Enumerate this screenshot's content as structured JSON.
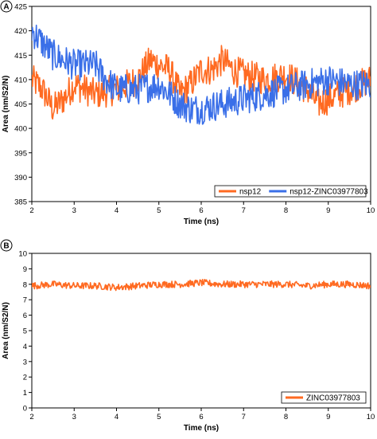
{
  "colors": {
    "nsp12": "#ff6a21",
    "complex": "#3a6fe8",
    "ligand": "#ff6a21"
  },
  "chart_data": [
    {
      "panel_label": "A",
      "type": "line",
      "xlabel": "Time (ns)",
      "ylabel": "Area (nm/S2/N)",
      "xlim": [
        2,
        10
      ],
      "ylim": [
        385,
        425
      ],
      "xticks": [
        "2",
        "3",
        "4",
        "5",
        "6",
        "7",
        "8",
        "9",
        "10"
      ],
      "yticks": [
        "385",
        "390",
        "395",
        "400",
        "405",
        "410",
        "415",
        "420",
        "425"
      ],
      "legend_position": "bottom-right",
      "series": [
        {
          "name": "nsp12",
          "color_key": "nsp12",
          "x": [
            2.0,
            2.25,
            2.5,
            2.75,
            3.0,
            3.5,
            4.0,
            4.5,
            4.8,
            5.0,
            5.25,
            5.5,
            5.75,
            6.0,
            6.25,
            6.5,
            6.75,
            7.0,
            7.5,
            8.0,
            8.5,
            8.75,
            9.0,
            9.5,
            10.0
          ],
          "values": [
            410,
            408,
            404,
            406,
            409,
            407,
            408,
            410,
            414,
            413,
            412,
            407,
            409,
            412,
            412,
            414,
            412,
            411,
            410,
            411,
            408,
            405,
            406,
            408,
            410
          ]
        },
        {
          "name": "nsp12-ZINC03977803",
          "color_key": "complex",
          "x": [
            2.0,
            2.2,
            2.5,
            2.75,
            3.0,
            3.25,
            3.5,
            3.75,
            4.0,
            4.5,
            5.0,
            5.5,
            5.75,
            6.0,
            6.5,
            7.0,
            7.5,
            8.0,
            8.5,
            9.0,
            9.5,
            10.0
          ],
          "values": [
            420,
            418,
            415,
            414,
            413,
            413,
            413,
            410,
            408,
            408,
            409,
            405,
            404,
            404,
            405,
            406,
            407,
            408,
            409,
            410,
            409,
            409
          ]
        }
      ]
    },
    {
      "panel_label": "B",
      "type": "line",
      "xlabel": "Time (ns)",
      "ylabel": "Area (nm/S2/N)",
      "xlim": [
        2,
        10
      ],
      "ylim": [
        0,
        10
      ],
      "xticks": [
        "2",
        "3",
        "4",
        "5",
        "6",
        "7",
        "8",
        "9",
        "10"
      ],
      "yticks": [
        "0",
        "1",
        "2",
        "3",
        "4",
        "5",
        "6",
        "7",
        "8",
        "9",
        "10"
      ],
      "legend_position": "bottom-right",
      "series": [
        {
          "name": "ZINC03977803",
          "color_key": "ligand",
          "x": [
            2.0,
            2.5,
            3.0,
            3.5,
            4.0,
            4.5,
            5.0,
            5.5,
            6.0,
            6.5,
            7.0,
            7.5,
            8.0,
            8.5,
            9.0,
            9.5,
            10.0
          ],
          "values": [
            7.9,
            8.0,
            7.9,
            7.9,
            7.8,
            7.9,
            8.0,
            8.0,
            8.1,
            8.0,
            8.0,
            8.0,
            8.0,
            7.9,
            8.0,
            8.0,
            7.9
          ]
        }
      ]
    }
  ]
}
